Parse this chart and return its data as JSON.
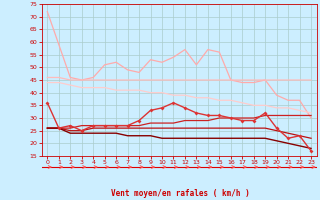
{
  "background_color": "#cceeff",
  "grid_color": "#aacccc",
  "xlabel": "Vent moyen/en rafales ( km/h )",
  "xlabel_color": "#cc0000",
  "tick_color": "#cc0000",
  "xlim": [
    -0.5,
    23.5
  ],
  "ylim": [
    15,
    75
  ],
  "yticks": [
    15,
    20,
    25,
    30,
    35,
    40,
    45,
    50,
    55,
    60,
    65,
    70,
    75
  ],
  "xticks": [
    0,
    1,
    2,
    3,
    4,
    5,
    6,
    7,
    8,
    9,
    10,
    11,
    12,
    13,
    14,
    15,
    16,
    17,
    18,
    19,
    20,
    21,
    22,
    23
  ],
  "series": [
    {
      "color": "#ffaaaa",
      "linewidth": 0.9,
      "marker": null,
      "data": [
        72,
        59,
        46,
        45,
        46,
        51,
        52,
        49,
        48,
        53,
        52,
        54,
        57,
        51,
        57,
        56,
        45,
        44,
        44,
        45,
        39,
        37,
        37,
        30
      ]
    },
    {
      "color": "#ffbbbb",
      "linewidth": 0.9,
      "marker": null,
      "data": [
        46,
        46,
        45,
        45,
        45,
        45,
        45,
        45,
        45,
        45,
        45,
        45,
        45,
        45,
        45,
        45,
        45,
        45,
        45,
        45,
        45,
        45,
        45,
        45
      ]
    },
    {
      "color": "#ffcccc",
      "linewidth": 0.9,
      "marker": null,
      "data": [
        44,
        44,
        43,
        42,
        42,
        42,
        41,
        41,
        41,
        40,
        40,
        39,
        39,
        38,
        38,
        37,
        37,
        36,
        35,
        35,
        34,
        34,
        33,
        32
      ]
    },
    {
      "color": "#dd3333",
      "linewidth": 1.0,
      "marker": "D",
      "markersize": 2.0,
      "data": [
        36,
        26,
        27,
        25,
        27,
        27,
        27,
        27,
        29,
        33,
        34,
        36,
        34,
        32,
        31,
        31,
        30,
        29,
        29,
        32,
        26,
        22,
        23,
        17
      ]
    },
    {
      "color": "#cc2222",
      "linewidth": 0.9,
      "marker": null,
      "data": [
        26,
        26,
        26,
        27,
        27,
        27,
        27,
        27,
        27,
        28,
        28,
        28,
        29,
        29,
        29,
        30,
        30,
        30,
        30,
        31,
        31,
        31,
        31,
        31
      ]
    },
    {
      "color": "#bb1111",
      "linewidth": 0.9,
      "marker": null,
      "data": [
        26,
        26,
        25,
        25,
        26,
        26,
        26,
        26,
        26,
        26,
        26,
        26,
        26,
        26,
        26,
        26,
        26,
        26,
        26,
        26,
        25,
        24,
        23,
        22
      ]
    },
    {
      "color": "#880000",
      "linewidth": 1.0,
      "marker": null,
      "data": [
        26,
        26,
        24,
        24,
        24,
        24,
        24,
        23,
        23,
        23,
        22,
        22,
        22,
        22,
        22,
        22,
        22,
        22,
        22,
        22,
        21,
        20,
        19,
        18
      ]
    }
  ],
  "arrow_color": "#ff5555",
  "arrow_line_color": "#dd0000"
}
